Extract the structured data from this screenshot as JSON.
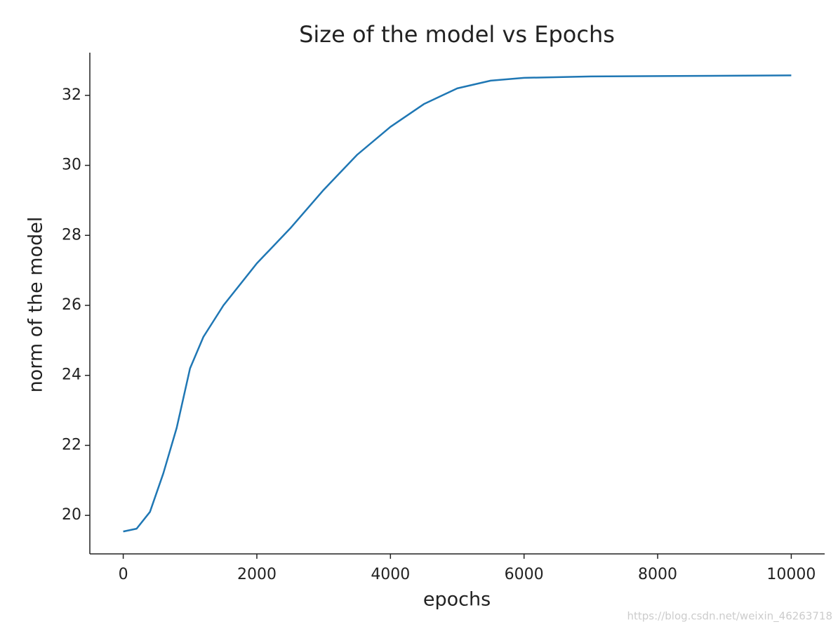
{
  "chart_data": {
    "type": "line",
    "title": "Size of the model vs Epochs",
    "x_label": "epochs",
    "y_label": "norm of the model",
    "watermark": "https://blog.csdn.net/weixin_46263718",
    "x": [
      0,
      200,
      400,
      600,
      800,
      1000,
      1200,
      1500,
      2000,
      2500,
      3000,
      3500,
      4000,
      4500,
      5000,
      5500,
      6000,
      7000,
      8000,
      10000
    ],
    "series": [
      {
        "name": "norm",
        "color": "#1f77b4",
        "values": [
          19.54,
          19.62,
          20.1,
          21.2,
          22.5,
          24.2,
          25.1,
          26.0,
          27.2,
          28.2,
          29.3,
          30.3,
          31.1,
          31.75,
          32.2,
          32.42,
          32.5,
          32.54,
          32.55,
          32.57
        ]
      }
    ],
    "xlim": [
      -500,
      10500
    ],
    "ylim": [
      18.9,
      33.22
    ],
    "xticks": [
      0,
      2000,
      4000,
      6000,
      8000,
      10000
    ],
    "yticks": [
      20,
      22,
      24,
      26,
      28,
      30,
      32
    ],
    "grid": false
  }
}
